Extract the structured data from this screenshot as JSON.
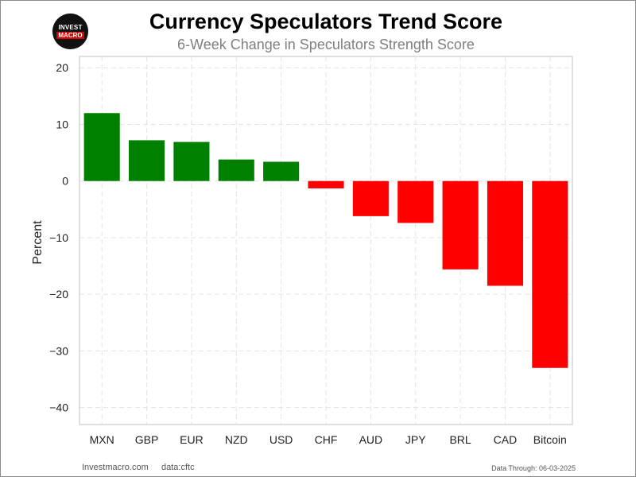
{
  "header": {
    "title": "Currency Speculators Trend Score",
    "subtitle": "6-Week Change in Speculators Strength Score",
    "logo_line1": "INVEST",
    "logo_line2": "MACRO"
  },
  "footer": {
    "source_site": "Investmacro.com",
    "data_source": "data:cftc",
    "data_through": "Data Through: 06-03-2025"
  },
  "colors": {
    "positive": "#008000",
    "negative": "#ff0000"
  },
  "chart_data": {
    "type": "bar",
    "title": "Currency Speculators Trend Score",
    "subtitle": "6-Week Change in Speculators Strength Score",
    "xlabel": "",
    "ylabel": "Percent",
    "categories": [
      "MXN",
      "GBP",
      "EUR",
      "NZD",
      "USD",
      "CHF",
      "AUD",
      "JPY",
      "BRL",
      "CAD",
      "Bitcoin"
    ],
    "values": [
      12.0,
      7.2,
      6.9,
      3.8,
      3.4,
      -1.3,
      -6.2,
      -7.4,
      -15.6,
      -18.5,
      -33.0
    ],
    "ylim": [
      -43,
      22
    ],
    "yticks": [
      20,
      10,
      0,
      -10,
      -20,
      -30,
      -40
    ],
    "ytick_labels": [
      "20",
      "10",
      "0",
      "−10",
      "−20",
      "−30",
      "−40"
    ],
    "grid": true,
    "legend": "none"
  }
}
